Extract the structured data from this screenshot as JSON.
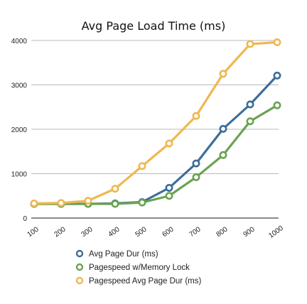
{
  "chart_data": {
    "type": "line",
    "title": "Avg Page Load Time (ms)",
    "xlabel": "",
    "ylabel": "",
    "categories": [
      "100",
      "200",
      "300",
      "400",
      "500",
      "600",
      "700",
      "800",
      "900",
      "1000"
    ],
    "ylim": [
      0,
      4000
    ],
    "yticks": [
      "0",
      "1000",
      "2000",
      "3000",
      "4000"
    ],
    "grid": true,
    "legend_position": "bottom",
    "series": [
      {
        "name": "Avg Page Dur (ms)",
        "color": "#3d6e99",
        "values": [
          320,
          320,
          320,
          330,
          360,
          680,
          1230,
          2010,
          2560,
          3210
        ]
      },
      {
        "name": "Pagespeed w/Memory Lock",
        "color": "#6aa352",
        "values": [
          320,
          320,
          320,
          320,
          350,
          500,
          920,
          1420,
          2180,
          2540
        ]
      },
      {
        "name": "Pagespeed Avg Page Dur (ms)",
        "color": "#efb851",
        "values": [
          330,
          340,
          390,
          660,
          1170,
          1680,
          2300,
          3250,
          3920,
          3960
        ]
      }
    ]
  }
}
